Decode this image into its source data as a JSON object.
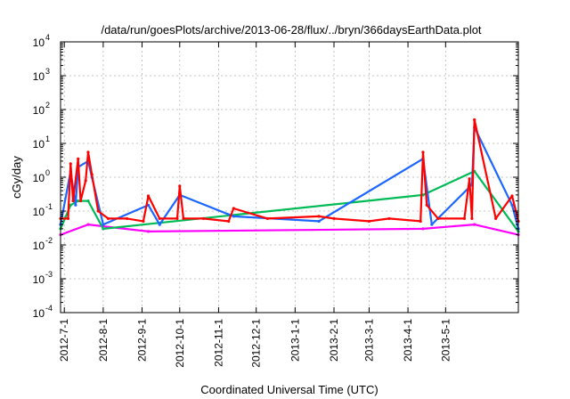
{
  "chart_data": {
    "type": "line",
    "title": "/data/run/goesPlots/archive/2013-06-28/flux/../bryn/366daysEarthData.plot",
    "xlabel": "Coordinated Universal Time (UTC)",
    "ylabel": "cGy/day",
    "yscale": "log",
    "ylim": [
      0.0001,
      10000
    ],
    "y_ticks": [
      {
        "base": "10",
        "exp": "-4",
        "value": 0.0001
      },
      {
        "base": "10",
        "exp": "-3",
        "value": 0.001
      },
      {
        "base": "10",
        "exp": "-2",
        "value": 0.01
      },
      {
        "base": "10",
        "exp": "-1",
        "value": 0.1
      },
      {
        "base": "10",
        "exp": "0",
        "value": 1
      },
      {
        "base": "10",
        "exp": "1",
        "value": 10
      },
      {
        "base": "10",
        "exp": "2",
        "value": 100
      },
      {
        "base": "10",
        "exp": "3",
        "value": 1000
      },
      {
        "base": "10",
        "exp": "4",
        "value": 10000
      }
    ],
    "xlim": [
      "2012-06-28",
      "2013-06-28"
    ],
    "x_ticks": [
      "2012-7-1",
      "2012-8-1",
      "2012-9-1",
      "2012-10-1",
      "2012-11-1",
      "2012-12-1",
      "2013-1-1",
      "2013-2-1",
      "2013-3-1",
      "2013-4-1",
      "2013-5-1"
    ],
    "x_tick_dates": [
      "2012-07-01",
      "2012-08-01",
      "2012-09-01",
      "2012-10-01",
      "2012-11-01",
      "2012-12-01",
      "2013-01-01",
      "2013-02-01",
      "2013-03-01",
      "2013-04-01",
      "2013-05-01"
    ],
    "grid": true,
    "legend": "none",
    "series": [
      {
        "color": "#ff0000",
        "x": [
          "2012-06-28",
          "2012-07-04",
          "2012-07-06",
          "2012-07-08",
          "2012-07-12",
          "2012-07-14",
          "2012-07-18",
          "2012-07-20",
          "2012-07-23",
          "2012-07-28",
          "2012-08-05",
          "2012-08-20",
          "2012-09-02",
          "2012-09-06",
          "2012-09-15",
          "2012-09-29",
          "2012-10-01",
          "2012-10-04",
          "2012-10-20",
          "2012-11-09",
          "2012-11-13",
          "2012-12-10",
          "2013-01-20",
          "2013-02-01",
          "2013-03-01",
          "2013-03-17",
          "2013-04-11",
          "2013-04-13",
          "2013-04-16",
          "2013-04-25",
          "2013-05-16",
          "2013-05-20",
          "2013-05-22",
          "2013-05-24",
          "2013-06-10",
          "2013-06-23",
          "2013-06-28"
        ],
        "values": [
          0.06,
          0.06,
          2.5,
          0.2,
          3.5,
          0.2,
          0.8,
          5.5,
          1.2,
          0.1,
          0.06,
          0.06,
          0.05,
          0.28,
          0.06,
          0.06,
          0.55,
          0.06,
          0.06,
          0.05,
          0.12,
          0.06,
          0.07,
          0.06,
          0.05,
          0.06,
          0.05,
          5.5,
          0.15,
          0.06,
          0.06,
          0.9,
          0.06,
          50,
          0.06,
          0.28,
          0.05
        ]
      },
      {
        "color": "#1a66ff",
        "x": [
          "2012-06-28",
          "2012-07-06",
          "2012-07-10",
          "2012-07-12",
          "2012-07-20",
          "2012-07-23",
          "2012-08-01",
          "2012-09-06",
          "2012-09-15",
          "2012-10-01",
          "2012-11-13",
          "2013-01-20",
          "2013-04-13",
          "2013-04-20",
          "2013-05-22",
          "2013-05-24",
          "2013-06-23",
          "2013-06-28"
        ],
        "values": [
          0.04,
          1.5,
          0.15,
          2.0,
          3.0,
          1.0,
          0.04,
          0.15,
          0.04,
          0.3,
          0.07,
          0.05,
          3.5,
          0.04,
          0.6,
          30,
          0.15,
          0.03
        ]
      },
      {
        "color": "#00bb55",
        "x": [
          "2012-06-28",
          "2012-07-06",
          "2012-07-12",
          "2012-07-20",
          "2012-08-01",
          "2013-04-13",
          "2013-05-24",
          "2013-06-28"
        ],
        "values": [
          0.03,
          0.15,
          0.2,
          0.2,
          0.03,
          0.3,
          1.5,
          0.025
        ]
      },
      {
        "color": "#ff00ff",
        "x": [
          "2012-06-28",
          "2012-07-20",
          "2012-09-06",
          "2013-04-13",
          "2013-05-24",
          "2013-06-28"
        ],
        "values": [
          0.02,
          0.04,
          0.025,
          0.03,
          0.04,
          0.02
        ]
      }
    ]
  }
}
